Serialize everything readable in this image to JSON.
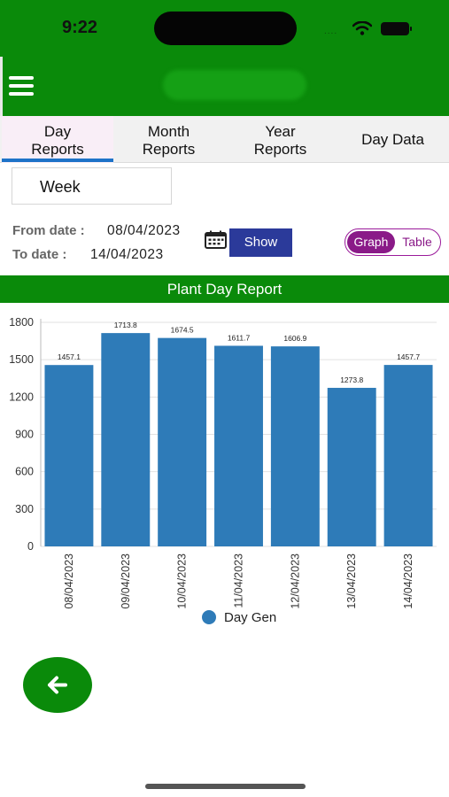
{
  "status_bar": {
    "time": "9:22",
    "signal": "...."
  },
  "tabs": [
    {
      "label": "Day\nReports",
      "active": true
    },
    {
      "label": "Month\nReports",
      "active": false
    },
    {
      "label": "Year\nReports",
      "active": false
    },
    {
      "label": "Day Data",
      "active": false
    }
  ],
  "period_select": {
    "value": "Week"
  },
  "dates": {
    "from_label": "From date :",
    "from_value": "08/04/2023",
    "to_label": "To date :",
    "to_value": "14/04/2023"
  },
  "show_button": {
    "label": "Show"
  },
  "view_toggle": {
    "options": [
      "Graph",
      "Table"
    ],
    "selected": "Graph"
  },
  "colors": {
    "brand": "#0a8a0a",
    "bar": "#2e7bb8",
    "show_button": "#2b3a9a",
    "toggle": "#8a1a88",
    "tab_underline": "#1e73c8"
  },
  "chart_data": {
    "type": "bar",
    "title": "Plant Day Report",
    "categories": [
      "08/04/2023",
      "09/04/2023",
      "10/04/2023",
      "11/04/2023",
      "12/04/2023",
      "13/04/2023",
      "14/04/2023"
    ],
    "series": [
      {
        "name": "Day Gen",
        "values": [
          1457.1,
          1713.8,
          1674.5,
          1611.7,
          1606.9,
          1273.8,
          1457.7
        ]
      }
    ],
    "data_labels": [
      "1457.1",
      "1713.8",
      "1674.5",
      "1611.7",
      "1606.9",
      "1273.8",
      "1457.7"
    ],
    "yticks": [
      0,
      300,
      600,
      900,
      1200,
      1500,
      1800
    ],
    "ylim": [
      0,
      1800
    ],
    "grid": true,
    "legend_position": "bottom"
  },
  "icons": {
    "menu": "hamburger-menu-icon",
    "calendar": "calendar-icon",
    "back": "arrow-left-icon"
  }
}
